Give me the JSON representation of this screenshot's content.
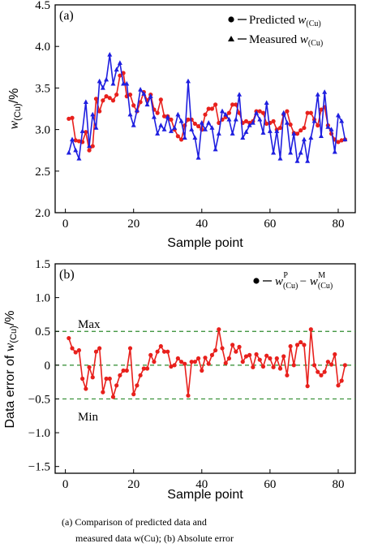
{
  "chart_data": [
    {
      "type": "line",
      "panel_label": "(a)",
      "xlabel": "Sample point",
      "ylabel": "w(Cu)/%",
      "xlim": [
        -3,
        85
      ],
      "ylim": [
        2.0,
        4.5
      ],
      "xticks": [
        0,
        20,
        40,
        60,
        80
      ],
      "yticks": [
        2.0,
        2.5,
        3.0,
        3.5,
        4.0,
        4.5
      ],
      "ytick_labels": [
        "2.0",
        "2.5",
        "3.0",
        "3.5",
        "4.0",
        "4.5"
      ],
      "legend_position": "top-right",
      "series": [
        {
          "name": "Predicted w(Cu)",
          "marker": "circle",
          "color": "#e8201c",
          "x": [
            1,
            2,
            3,
            4,
            5,
            6,
            7,
            8,
            9,
            10,
            11,
            12,
            13,
            14,
            15,
            16,
            17,
            18,
            19,
            20,
            21,
            22,
            23,
            24,
            25,
            26,
            27,
            28,
            29,
            30,
            31,
            32,
            33,
            34,
            35,
            36,
            37,
            38,
            39,
            40,
            41,
            42,
            43,
            44,
            45,
            46,
            47,
            48,
            49,
            50,
            51,
            52,
            53,
            54,
            55,
            56,
            57,
            58,
            59,
            60,
            61,
            62,
            63,
            64,
            65,
            66,
            67,
            68,
            69,
            70,
            71,
            72,
            73,
            74,
            75,
            76,
            77,
            78,
            79,
            80,
            81,
            82
          ],
          "y": [
            3.13,
            3.14,
            2.87,
            2.86,
            2.85,
            2.97,
            2.75,
            2.8,
            3.37,
            3.22,
            3.35,
            3.4,
            3.38,
            3.35,
            3.42,
            3.65,
            3.68,
            3.4,
            3.42,
            3.29,
            3.22,
            3.33,
            3.45,
            3.35,
            3.42,
            3.24,
            3.2,
            3.36,
            3.16,
            3.16,
            3.12,
            3.0,
            2.92,
            2.88,
            3.05,
            3.12,
            3.12,
            3.07,
            3.04,
            3.0,
            3.18,
            3.25,
            3.25,
            3.3,
            3.08,
            3.12,
            3.15,
            3.2,
            3.3,
            3.3,
            3.2,
            3.08,
            3.1,
            3.08,
            3.1,
            3.22,
            3.22,
            3.2,
            3.07,
            3.08,
            3.1,
            3.0,
            3.02,
            3.18,
            3.22,
            3.06,
            2.96,
            2.95,
            2.99,
            3.02,
            3.2,
            3.2,
            3.12,
            3.05,
            3.24,
            3.27,
            3.05,
            2.95,
            2.88,
            2.85,
            2.87,
            2.88
          ]
        },
        {
          "name": "Measured w(Cu)",
          "marker": "triangle",
          "color": "#1f1fe0",
          "x": [
            1,
            2,
            3,
            4,
            5,
            6,
            7,
            8,
            9,
            10,
            11,
            12,
            13,
            14,
            15,
            16,
            17,
            18,
            19,
            20,
            21,
            22,
            23,
            24,
            25,
            26,
            27,
            28,
            29,
            30,
            31,
            32,
            33,
            34,
            35,
            36,
            37,
            38,
            39,
            40,
            41,
            42,
            43,
            44,
            45,
            46,
            47,
            48,
            49,
            50,
            51,
            52,
            53,
            54,
            55,
            56,
            57,
            58,
            59,
            60,
            61,
            62,
            63,
            64,
            65,
            66,
            67,
            68,
            69,
            70,
            71,
            72,
            73,
            74,
            75,
            76,
            77,
            78,
            79,
            80,
            81,
            82
          ],
          "y": [
            2.72,
            2.88,
            2.75,
            2.65,
            2.98,
            3.33,
            2.8,
            3.18,
            3.02,
            3.58,
            3.5,
            3.6,
            3.9,
            3.55,
            3.72,
            3.8,
            3.55,
            3.55,
            3.18,
            3.05,
            3.23,
            3.48,
            3.43,
            3.3,
            3.4,
            3.15,
            2.95,
            3.05,
            3.0,
            3.15,
            2.98,
            3.02,
            3.18,
            3.1,
            2.9,
            3.58,
            3.0,
            2.9,
            2.66,
            3.08,
            3.0,
            3.08,
            3.02,
            2.76,
            2.95,
            3.22,
            3.18,
            3.12,
            2.95,
            3.12,
            3.42,
            2.9,
            2.97,
            3.05,
            3.08,
            3.2,
            3.12,
            2.96,
            3.32,
            2.98,
            2.72,
            2.98,
            2.65,
            3.2,
            3.08,
            2.72,
            2.95,
            2.62,
            2.72,
            2.88,
            2.62,
            2.9,
            3.1,
            3.42,
            2.92,
            3.45,
            3.03,
            3.0,
            2.73,
            3.17,
            3.1,
            2.88
          ]
        }
      ]
    },
    {
      "type": "line",
      "panel_label": "(b)",
      "xlabel": "Sample point",
      "ylabel": "Data error of w(Cu)/%",
      "xlim": [
        -3,
        85
      ],
      "ylim": [
        -1.6,
        1.5
      ],
      "xticks": [
        0,
        20,
        40,
        60,
        80
      ],
      "yticks": [
        -1.5,
        -1.0,
        -0.5,
        0,
        0.5,
        1.0,
        1.5
      ],
      "ytick_labels": [
        "−1.5",
        "−1.0",
        "−0.5",
        "0",
        "0.5",
        "1.0",
        "1.5"
      ],
      "legend_position": "top-right",
      "reference_lines": [
        {
          "label": "Max",
          "y": 0.5,
          "color": "#2e8b2e",
          "style": "dashed"
        },
        {
          "label": "",
          "y": 0.0,
          "color": "#2e8b2e",
          "style": "dashed"
        },
        {
          "label": "Min",
          "y": -0.5,
          "color": "#2e8b2e",
          "style": "dashed"
        }
      ],
      "series": [
        {
          "name": "w(Cu)P − w(Cu)M",
          "marker": "circle",
          "color": "#e8201c",
          "x": [
            1,
            2,
            3,
            4,
            5,
            6,
            7,
            8,
            9,
            10,
            11,
            12,
            13,
            14,
            15,
            16,
            17,
            18,
            19,
            20,
            21,
            22,
            23,
            24,
            25,
            26,
            27,
            28,
            29,
            30,
            31,
            32,
            33,
            34,
            35,
            36,
            37,
            38,
            39,
            40,
            41,
            42,
            43,
            44,
            45,
            46,
            47,
            48,
            49,
            50,
            51,
            52,
            53,
            54,
            55,
            56,
            57,
            58,
            59,
            60,
            61,
            62,
            63,
            64,
            65,
            66,
            67,
            68,
            69,
            70,
            71,
            72,
            73,
            74,
            75,
            76,
            77,
            78,
            79,
            80,
            81,
            82
          ],
          "y": [
            0.4,
            0.25,
            0.19,
            0.22,
            -0.2,
            -0.35,
            -0.03,
            -0.18,
            0.2,
            0.25,
            -0.4,
            -0.2,
            -0.2,
            -0.47,
            -0.3,
            -0.15,
            -0.08,
            -0.08,
            0.25,
            -0.43,
            -0.3,
            -0.15,
            -0.05,
            -0.05,
            0.15,
            0.05,
            0.2,
            0.28,
            0.2,
            0.2,
            -0.02,
            0.0,
            0.1,
            0.05,
            0.02,
            -0.45,
            0.05,
            0.05,
            0.1,
            -0.08,
            0.11,
            0.02,
            0.15,
            0.22,
            0.53,
            0.25,
            0.03,
            0.1,
            0.3,
            0.2,
            0.27,
            0.05,
            0.13,
            0.15,
            -0.03,
            0.16,
            0.08,
            -0.02,
            0.14,
            0.1,
            -0.03,
            0.1,
            -0.05,
            0.13,
            -0.15,
            0.28,
            0.0,
            0.3,
            0.34,
            0.3,
            -0.31,
            0.53,
            0.0,
            -0.1,
            -0.15,
            -0.1,
            0.05,
            0.01,
            0.16,
            -0.3,
            -0.23,
            0.0
          ]
        }
      ]
    }
  ],
  "caption": {
    "line1": "(a)  Comparison  of  predicted  data  and",
    "line2": "measured data w(Cu); (b) Absolute error"
  }
}
